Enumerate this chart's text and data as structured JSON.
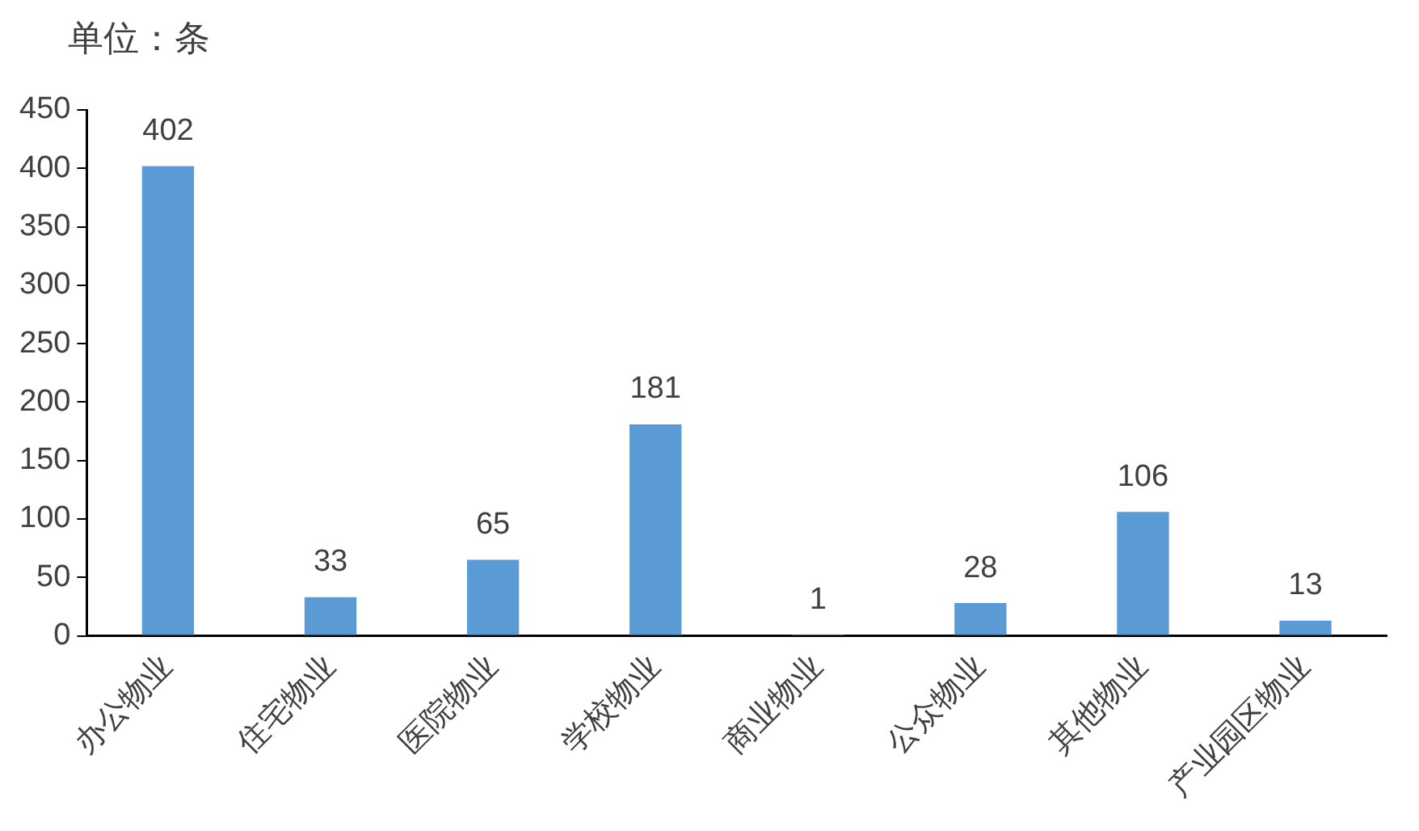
{
  "chart_data": {
    "type": "bar",
    "ylabel": "单位：条",
    "categories": [
      "办公物业",
      "住宅物业",
      "医院物业",
      "学校物业",
      "商业物业",
      "公众物业",
      "其他物业",
      "产业园区物业"
    ],
    "values": [
      402,
      33,
      65,
      181,
      1,
      28,
      106,
      13
    ],
    "color": "#5b9bd5",
    "ylim": [
      0,
      450
    ],
    "yticks": [
      0,
      50,
      100,
      150,
      200,
      250,
      300,
      350,
      400,
      450
    ],
    "grid": false,
    "legend": false,
    "data_labels": true
  }
}
